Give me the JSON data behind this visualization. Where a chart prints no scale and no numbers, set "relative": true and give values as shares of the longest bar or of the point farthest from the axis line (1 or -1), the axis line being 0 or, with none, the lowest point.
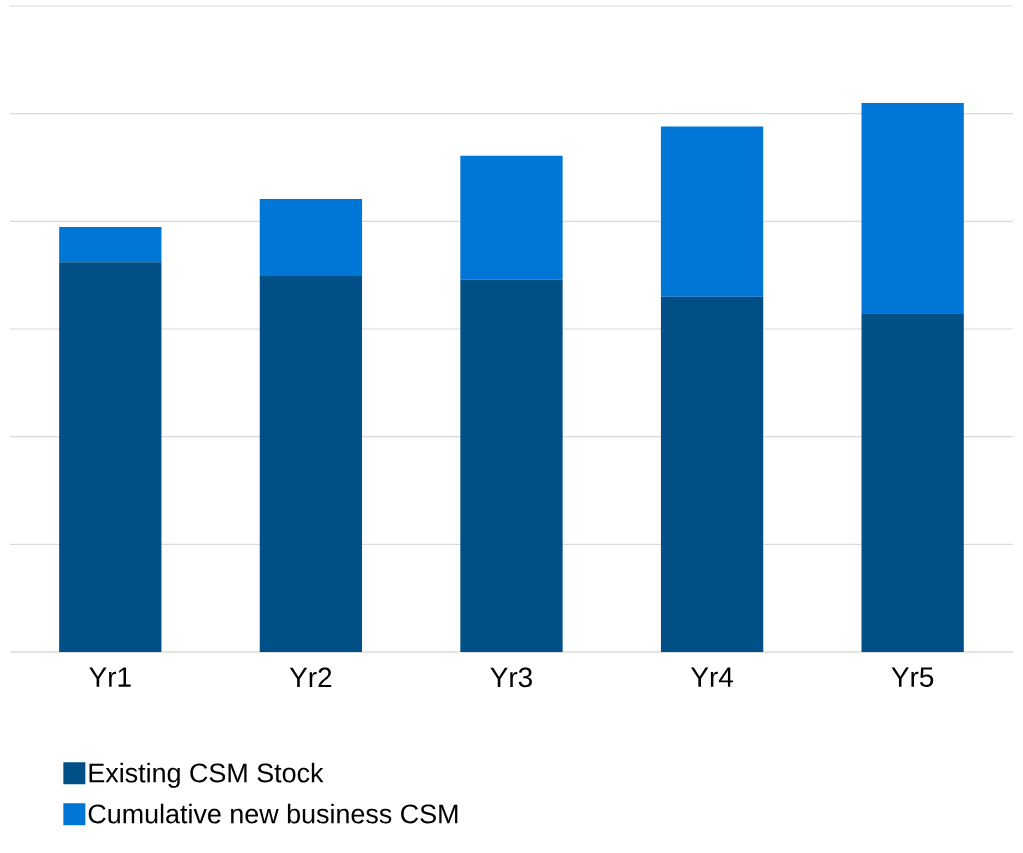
{
  "chart_data": {
    "type": "bar",
    "stacked": true,
    "relative": true,
    "categories": [
      "Yr1",
      "Yr2",
      "Yr3",
      "Yr4",
      "Yr5"
    ],
    "series": [
      {
        "name": "Existing CSM Stock",
        "color": "#004f86",
        "values": [
          0.71,
          0.685,
          0.678,
          0.647,
          0.617
        ]
      },
      {
        "name": "Cumulative new business CSM",
        "color": "#0077d6",
        "values": [
          0.064,
          0.14,
          0.226,
          0.31,
          0.383
        ]
      }
    ],
    "grid": "y",
    "legend": "bottom"
  }
}
